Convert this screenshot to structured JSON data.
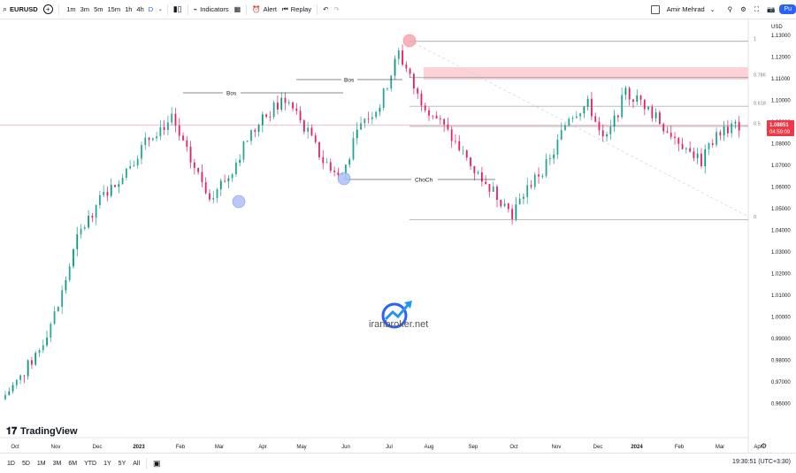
{
  "topbar": {
    "symbol": "EURUSD",
    "timeframes": [
      "1m",
      "3m",
      "5m",
      "15m",
      "1h",
      "4h",
      "D"
    ],
    "active_timeframe": "D",
    "indicators_label": "Indicators",
    "alert_label": "Alert",
    "replay_label": "Replay",
    "user_name": "Amir Mehrad",
    "publish_label": "Pu"
  },
  "chart": {
    "currency": "USD",
    "price_ticks": [
      "1.13000",
      "1.12000",
      "1.11000",
      "1.10000",
      "1.09000",
      "1.08000",
      "1.07000",
      "1.06000",
      "1.05000",
      "1.04000",
      "1.03000",
      "1.02000",
      "1.01000",
      "1.00000",
      "0.99000",
      "0.98000",
      "0.97000",
      "0.96000"
    ],
    "time_ticks": [
      "Oct",
      "Nov",
      "Dec",
      "2023",
      "Feb",
      "Mar",
      "Apr",
      "May",
      "Jun",
      "Jul",
      "Aug",
      "Sep",
      "Oct",
      "Nov",
      "Dec",
      "2024",
      "Feb",
      "Mar",
      "Apr"
    ],
    "last_price": "1.08851",
    "countdown": "04:59:09",
    "fib_levels": [
      {
        "label": "1",
        "price": 1.1272
      },
      {
        "label": "0.786",
        "price": 1.1105
      },
      {
        "label": "0.618",
        "price": 1.0973
      },
      {
        "label": "0.5",
        "price": 1.088
      },
      {
        "label": "0",
        "price": 1.0448
      }
    ],
    "annotations": [
      {
        "text": "Bos",
        "price": 1.1036
      },
      {
        "text": "Bos",
        "price": 1.109
      },
      {
        "text": "ChoCh",
        "price": 1.0641
      }
    ],
    "watermark": "iranbroker.net",
    "logo_text": "TradingView",
    "colors": {
      "up": "#26a69a",
      "down": "#e91e63",
      "up_alt": "#089981",
      "accent": "#2962ff",
      "last_price": "#f23645",
      "zone": "#fbd3d6",
      "circle_red": "#f4a3a8",
      "circle_blue": "#a9bdf5"
    }
  },
  "bottombar": {
    "ranges": [
      "1D",
      "5D",
      "1M",
      "3M",
      "6M",
      "YTD",
      "1Y",
      "5Y",
      "All"
    ],
    "clock": "19:30:51 (UTC+3:30)"
  },
  "chart_data": {
    "type": "candlestick",
    "title": "",
    "symbol": "EURUSD",
    "x": [
      "2022-09-26",
      "2022-10-10",
      "2022-10-24",
      "2022-11-07",
      "2022-11-21",
      "2022-12-05",
      "2022-12-19",
      "2023-01-02",
      "2023-01-16",
      "2023-01-30",
      "2023-02-13",
      "2023-02-27",
      "2023-03-13",
      "2023-03-27",
      "2023-04-10",
      "2023-04-24",
      "2023-05-08",
      "2023-05-22",
      "2023-06-05",
      "2023-06-19",
      "2023-07-03",
      "2023-07-17",
      "2023-07-31",
      "2023-08-14",
      "2023-08-28",
      "2023-09-11",
      "2023-09-25",
      "2023-10-09",
      "2023-10-23",
      "2023-11-06",
      "2023-11-20",
      "2023-12-04",
      "2023-12-18",
      "2024-01-01",
      "2024-01-15",
      "2024-01-29",
      "2024-02-12",
      "2024-02-26",
      "2024-03-11",
      "2024-03-18"
    ],
    "close": [
      0.962,
      0.972,
      0.985,
      1.005,
      1.036,
      1.052,
      1.062,
      1.073,
      1.085,
      1.091,
      1.072,
      1.056,
      1.065,
      1.082,
      1.093,
      1.101,
      1.088,
      1.072,
      1.066,
      1.089,
      1.098,
      1.122,
      1.102,
      1.092,
      1.08,
      1.068,
      1.058,
      1.048,
      1.062,
      1.072,
      1.093,
      1.098,
      1.082,
      1.104,
      1.098,
      1.088,
      1.08,
      1.072,
      1.086,
      1.0885
    ],
    "ylim": [
      0.955,
      1.135
    ],
    "ylabel": "USD",
    "grid": false
  }
}
